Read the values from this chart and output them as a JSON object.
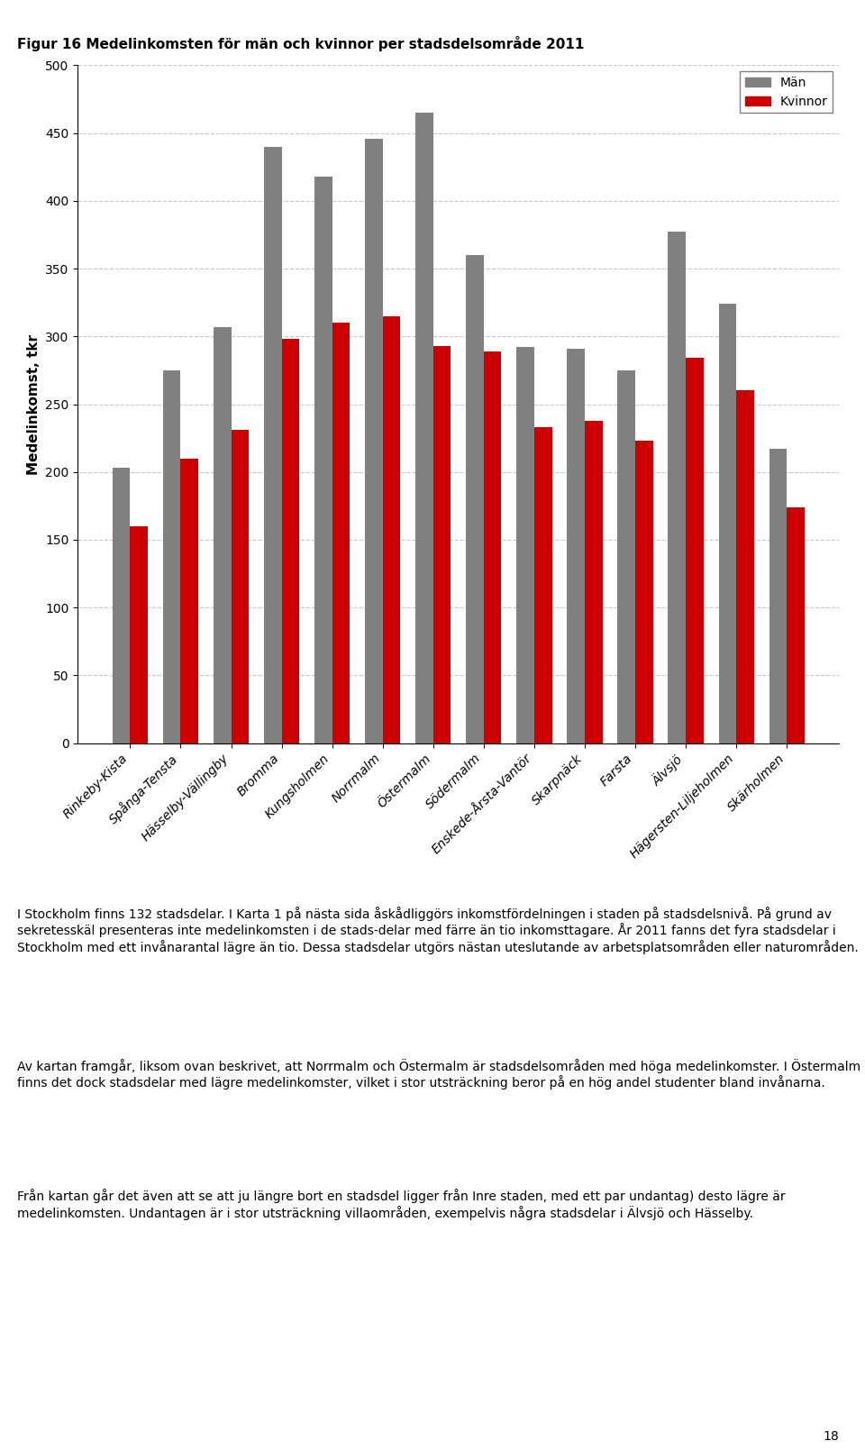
{
  "title": "Figur 16 Medelinkomsten för män och kvinnor per stadsdelsområde 2011",
  "ylabel": "Medelinkomst, tkr",
  "categories": [
    "Rinkeby-Kista",
    "Spånga-Tensta",
    "Hässelby-Vällingby",
    "Bromma",
    "Kungsholmen",
    "Norrmalm",
    "Östermalm",
    "Södermalm",
    "Enskede-Årsta-Vantör",
    "Skarpnäck",
    "Farsta",
    "Älvsjö",
    "Hägersten-Liljeholmen",
    "Skärholmen"
  ],
  "man_values": [
    203,
    275,
    307,
    440,
    418,
    446,
    465,
    360,
    292,
    291,
    275,
    377,
    324,
    217
  ],
  "kvinna_values": [
    160,
    210,
    231,
    298,
    310,
    315,
    293,
    289,
    233,
    238,
    223,
    284,
    260,
    174
  ],
  "man_color": "#808080",
  "kvinna_color": "#cc0000",
  "ylim": [
    0,
    500
  ],
  "yticks": [
    0,
    50,
    100,
    150,
    200,
    250,
    300,
    350,
    400,
    450,
    500
  ],
  "legend_man": "Män",
  "legend_kvinna": "Kvinnor",
  "background_color": "#ffffff",
  "grid_color": "#c8c8c8",
  "title_fontsize": 11,
  "axis_fontsize": 11,
  "tick_fontsize": 10,
  "label_fontsize": 10,
  "para1": "I Stockholm finns 132 stadsdelar. I Karta 1 på nästa sida åskådliggörs inkomstfördelningen i staden på stadsdelsnivå. På grund av sekretesskäl presenteras inte medelinkomsten i de stads-delar med färre än tio inkomsttagare. År 2011 fanns det fyra stadsdelar i Stockholm med ett invånarantal lägre än tio. Dessa stadsdelar utgörs nästan uteslutande av arbetsplatsområden eller naturområden.",
  "para2": "Av kartan framgår, liksom ovan beskrivet, att Norrmalm och Östermalm är stadsdelsområden med höga medelinkomster. I Östermalm finns det dock stadsdelar med lägre medelinkomster, vilket i stor utsträckning beror på en hög andel studenter bland invånarna.",
  "para3": "Från kartan går det även att se att ju längre bort en stadsdel ligger från Inre staden, med ett par undantag) desto lägre är medelinkomsten. Undantagen är i stor utsträckning villaområden, exempelvis några stadsdelar i Älvsjö och Hässelby.",
  "page_number": "18"
}
